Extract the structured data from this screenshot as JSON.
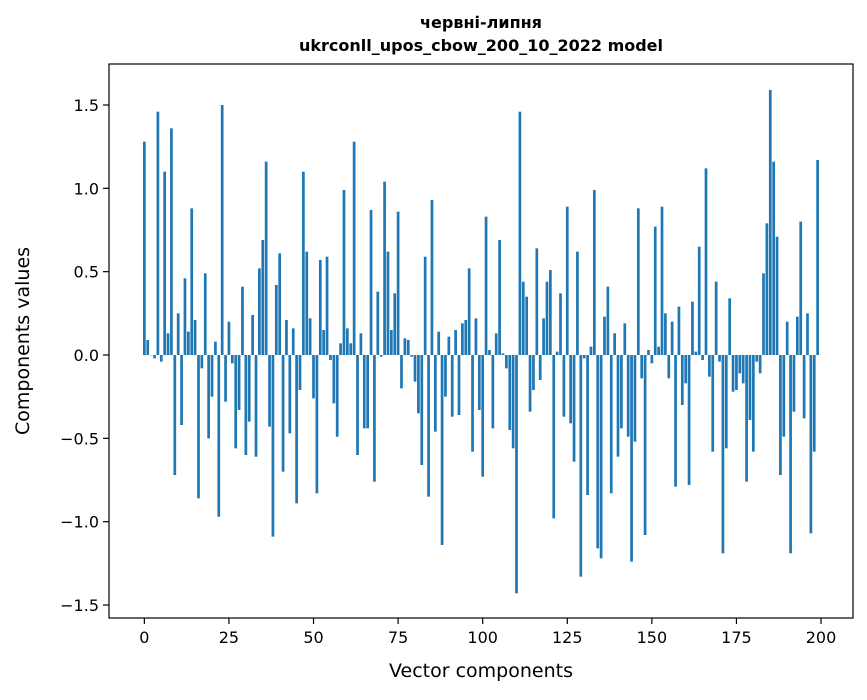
{
  "chart_data": {
    "type": "bar",
    "title": "червні-липня",
    "subtitle": "ukrconll_upos_cbow_200_10_2022 model",
    "xlabel": "Vector components",
    "ylabel": "Components values",
    "xlim": [
      -10.45,
      209.45
    ],
    "ylim": [
      -1.578,
      1.746
    ],
    "xticks": [
      0,
      25,
      50,
      75,
      100,
      125,
      150,
      175,
      200
    ],
    "xtick_labels": [
      "0",
      "25",
      "50",
      "75",
      "100",
      "125",
      "150",
      "175",
      "200"
    ],
    "yticks": [
      -1.5,
      -1.0,
      -0.5,
      0.0,
      0.5,
      1.0,
      1.5
    ],
    "ytick_labels": [
      "−1.5",
      "−1.0",
      "−0.5",
      "0.0",
      "0.5",
      "1.0",
      "1.5"
    ],
    "grid": false,
    "bar_color": "#1f77b4",
    "values": [
      1.28,
      0.09,
      0,
      -0.02,
      1.46,
      -0.04,
      1.1,
      0.13,
      1.36,
      -0.72,
      0.25,
      -0.42,
      0.46,
      0.14,
      0.88,
      0.21,
      -0.86,
      -0.08,
      0.49,
      -0.5,
      -0.25,
      0.08,
      -0.97,
      1.5,
      -0.28,
      0.2,
      -0.05,
      -0.56,
      -0.33,
      0.41,
      -0.6,
      -0.4,
      0.24,
      -0.61,
      0.52,
      0.69,
      1.16,
      -0.43,
      -1.09,
      0.42,
      0.61,
      -0.7,
      0.21,
      -0.47,
      0.16,
      -0.89,
      -0.21,
      1.1,
      0.62,
      0.22,
      -0.26,
      -0.83,
      0.57,
      0.15,
      0.59,
      -0.03,
      -0.29,
      -0.49,
      0.07,
      0.99,
      0.16,
      0.07,
      1.28,
      -0.6,
      0.13,
      -0.44,
      -0.44,
      0.87,
      -0.76,
      0.38,
      -0.01,
      1.04,
      0.62,
      0.15,
      0.37,
      0.86,
      -0.2,
      0.1,
      0.09,
      -0.01,
      -0.16,
      -0.35,
      -0.66,
      0.59,
      -0.85,
      0.93,
      -0.46,
      0.14,
      -1.14,
      -0.25,
      0.11,
      -0.37,
      0.15,
      -0.36,
      0.19,
      0.21,
      0.52,
      -0.58,
      0.22,
      -0.33,
      -0.73,
      0.83,
      0.03,
      -0.44,
      0.13,
      0.69,
      0.01,
      -0.08,
      -0.45,
      -0.56,
      -1.43,
      1.46,
      0.44,
      0.35,
      -0.34,
      -0.21,
      0.64,
      -0.15,
      0.22,
      0.44,
      0.51,
      -0.98,
      0.02,
      0.37,
      -0.37,
      0.89,
      -0.41,
      -0.64,
      0.62,
      -1.33,
      -0.02,
      -0.84,
      0.05,
      0.99,
      -1.16,
      -1.22,
      0.23,
      0.41,
      -0.83,
      0.13,
      -0.61,
      -0.44,
      0.19,
      -0.49,
      -1.24,
      -0.52,
      0.88,
      -0.14,
      -1.08,
      0.03,
      -0.05,
      0.77,
      0.05,
      0.89,
      0.25,
      -0.14,
      0.2,
      -0.79,
      0.29,
      -0.3,
      -0.17,
      -0.78,
      0.32,
      0.02,
      0.65,
      -0.03,
      1.12,
      -0.13,
      -0.58,
      0.44,
      -0.04,
      -1.19,
      -0.56,
      0.34,
      -0.22,
      -0.21,
      -0.11,
      -0.17,
      -0.76,
      -0.39,
      -0.58,
      -0.04,
      -0.11,
      0.49,
      0.79,
      1.59,
      1.16,
      0.71,
      -0.72,
      -0.49,
      0.2,
      -1.19,
      -0.34,
      0.23,
      0.8,
      -0.38,
      0.25,
      -1.07,
      -0.58,
      1.17
    ]
  }
}
